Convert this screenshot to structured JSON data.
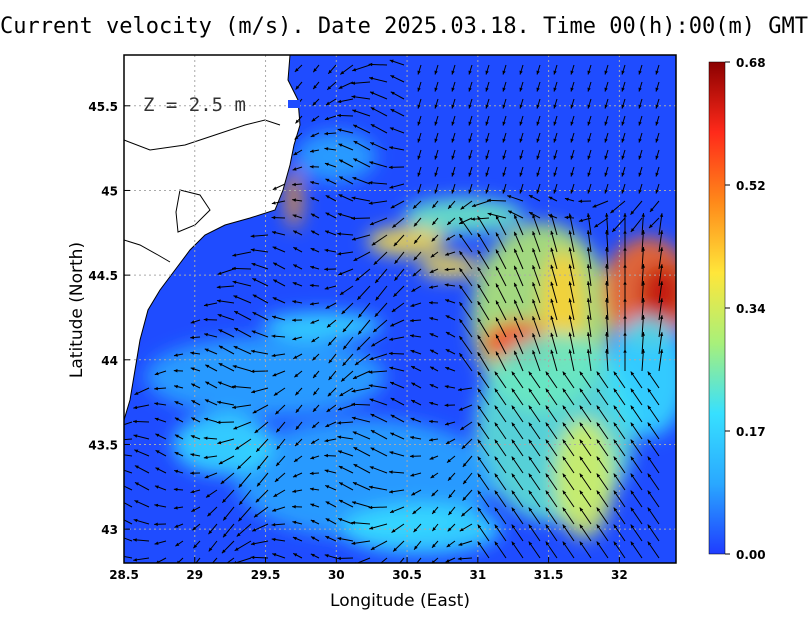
{
  "title": "Current velocity (m/s). Date 2025.03.18. Time 00(h):00(m) GMT",
  "depth_label": "Z = 2.5 m",
  "xaxis": {
    "label": "Longitude (East)",
    "ticks": [
      "28.5",
      "29",
      "29.5",
      "30",
      "30.5",
      "31",
      "31.5",
      "32"
    ],
    "range": [
      28.5,
      32.4
    ]
  },
  "yaxis": {
    "label": "Latitude (North)",
    "ticks": [
      "43",
      "43.5",
      "44",
      "44.5",
      "45",
      "45.5"
    ],
    "range": [
      42.8,
      45.8
    ]
  },
  "colorbar": {
    "ticks": [
      "0.00",
      "0.17",
      "0.34",
      "0.52",
      "0.68"
    ],
    "range": [
      0,
      0.68
    ],
    "colors": [
      "#1f3cff",
      "#2aa8ff",
      "#37e0ff",
      "#a8f07a",
      "#ffe63a",
      "#ff8a1a",
      "#ff2a1a",
      "#8b0000"
    ]
  },
  "colors": {
    "land": "#ffffff",
    "coastline": "#000000",
    "arrows": "#000000",
    "grid": "#aaaaaa"
  }
}
